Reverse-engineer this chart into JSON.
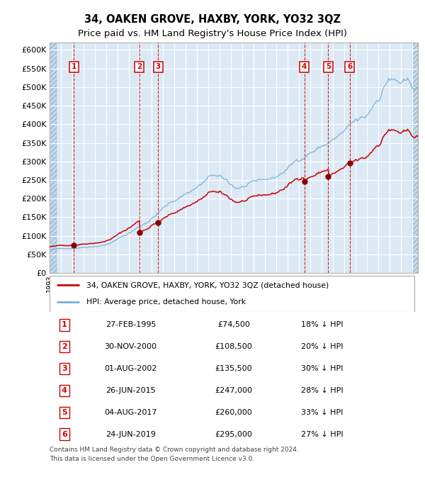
{
  "title": "34, OAKEN GROVE, HAXBY, YORK, YO32 3QZ",
  "subtitle": "Price paid vs. HM Land Registry's House Price Index (HPI)",
  "title_fontsize": 10.5,
  "subtitle_fontsize": 9.5,
  "plot_bg_color": "#dce9f5",
  "grid_color": "#ffffff",
  "red_line_color": "#cc0000",
  "blue_line_color": "#7aafd4",
  "marker_color": "#880000",
  "dashed_line_color": "#cc0000",
  "legend_label_red": "34, OAKEN GROVE, HAXBY, YORK, YO32 3QZ (detached house)",
  "legend_label_blue": "HPI: Average price, detached house, York",
  "footer_text": "Contains HM Land Registry data © Crown copyright and database right 2024.\nThis data is licensed under the Open Government Licence v3.0.",
  "ylim": [
    0,
    620000
  ],
  "yticks": [
    0,
    50000,
    100000,
    150000,
    200000,
    250000,
    300000,
    350000,
    400000,
    450000,
    500000,
    550000,
    600000
  ],
  "ytick_labels": [
    "£0",
    "£50K",
    "£100K",
    "£150K",
    "£200K",
    "£250K",
    "£300K",
    "£350K",
    "£400K",
    "£450K",
    "£500K",
    "£550K",
    "£600K"
  ],
  "transactions": [
    {
      "num": 1,
      "date": "27-FEB-1995",
      "price": 74500,
      "year": 1995.15
    },
    {
      "num": 2,
      "date": "30-NOV-2000",
      "price": 108500,
      "year": 2000.92
    },
    {
      "num": 3,
      "date": "01-AUG-2002",
      "price": 135500,
      "year": 2002.58
    },
    {
      "num": 4,
      "date": "26-JUN-2015",
      "price": 247000,
      "year": 2015.48
    },
    {
      "num": 5,
      "date": "04-AUG-2017",
      "price": 260000,
      "year": 2017.59
    },
    {
      "num": 6,
      "date": "24-JUN-2019",
      "price": 295000,
      "year": 2019.48
    }
  ],
  "table_rows": [
    {
      "num": 1,
      "date": "27-FEB-1995",
      "price": "£74,500",
      "hpi": "18% ↓ HPI"
    },
    {
      "num": 2,
      "date": "30-NOV-2000",
      "price": "£108,500",
      "hpi": "20% ↓ HPI"
    },
    {
      "num": 3,
      "date": "01-AUG-2002",
      "price": "£135,500",
      "hpi": "30% ↓ HPI"
    },
    {
      "num": 4,
      "date": "26-JUN-2015",
      "price": "£247,000",
      "hpi": "28% ↓ HPI"
    },
    {
      "num": 5,
      "date": "04-AUG-2017",
      "price": "£260,000",
      "hpi": "33% ↓ HPI"
    },
    {
      "num": 6,
      "date": "24-JUN-2019",
      "price": "£295,000",
      "hpi": "27% ↓ HPI"
    }
  ]
}
